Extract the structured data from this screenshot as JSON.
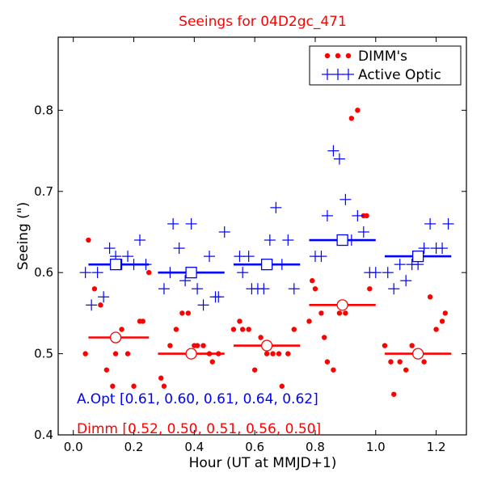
{
  "chart_data": {
    "type": "scatter",
    "title": "Seeings for 04D2gc_471",
    "xlabel": "Hour (UT at MMJD+1)",
    "ylabel": "Seeing (\")",
    "xlim": [
      -0.05,
      1.3
    ],
    "ylim": [
      0.4,
      0.89
    ],
    "x_ticks": [
      0.0,
      0.2,
      0.4,
      0.6,
      0.8,
      1.0,
      1.2
    ],
    "x_tick_labels": [
      "0.0",
      "0.2",
      "0.4",
      "0.6",
      "0.8",
      "1.0",
      "1.2"
    ],
    "y_ticks": [
      0.4,
      0.5,
      0.6,
      0.7,
      0.8
    ],
    "y_tick_labels": [
      "0.4",
      "0.5",
      "0.6",
      "0.7",
      "0.8"
    ],
    "grid": false,
    "legend_position": "top-right",
    "series": [
      {
        "name": "DIMM's",
        "color": "#ff0000",
        "marker": "dot",
        "points": [
          [
            0.04,
            0.5
          ],
          [
            0.05,
            0.64
          ],
          [
            0.07,
            0.58
          ],
          [
            0.09,
            0.56
          ],
          [
            0.11,
            0.48
          ],
          [
            0.13,
            0.46
          ],
          [
            0.14,
            0.5
          ],
          [
            0.16,
            0.53
          ],
          [
            0.18,
            0.5
          ],
          [
            0.2,
            0.46
          ],
          [
            0.22,
            0.54
          ],
          [
            0.23,
            0.54
          ],
          [
            0.25,
            0.6
          ],
          [
            0.29,
            0.47
          ],
          [
            0.3,
            0.46
          ],
          [
            0.32,
            0.51
          ],
          [
            0.34,
            0.53
          ],
          [
            0.36,
            0.55
          ],
          [
            0.38,
            0.55
          ],
          [
            0.4,
            0.51
          ],
          [
            0.41,
            0.51
          ],
          [
            0.43,
            0.51
          ],
          [
            0.45,
            0.5
          ],
          [
            0.46,
            0.49
          ],
          [
            0.48,
            0.5
          ],
          [
            0.53,
            0.53
          ],
          [
            0.55,
            0.54
          ],
          [
            0.56,
            0.53
          ],
          [
            0.58,
            0.53
          ],
          [
            0.6,
            0.48
          ],
          [
            0.62,
            0.52
          ],
          [
            0.64,
            0.5
          ],
          [
            0.66,
            0.5
          ],
          [
            0.68,
            0.5
          ],
          [
            0.69,
            0.46
          ],
          [
            0.71,
            0.5
          ],
          [
            0.73,
            0.53
          ],
          [
            0.78,
            0.54
          ],
          [
            0.79,
            0.59
          ],
          [
            0.8,
            0.58
          ],
          [
            0.82,
            0.55
          ],
          [
            0.83,
            0.52
          ],
          [
            0.84,
            0.49
          ],
          [
            0.86,
            0.48
          ],
          [
            0.88,
            0.55
          ],
          [
            0.9,
            0.55
          ],
          [
            0.92,
            0.79
          ],
          [
            0.94,
            0.8
          ],
          [
            0.96,
            0.67
          ],
          [
            0.97,
            0.67
          ],
          [
            0.98,
            0.58
          ],
          [
            1.03,
            0.51
          ],
          [
            1.05,
            0.49
          ],
          [
            1.06,
            0.45
          ],
          [
            1.08,
            0.49
          ],
          [
            1.1,
            0.48
          ],
          [
            1.12,
            0.51
          ],
          [
            1.14,
            0.5
          ],
          [
            1.16,
            0.49
          ],
          [
            1.18,
            0.57
          ],
          [
            1.2,
            0.53
          ],
          [
            1.22,
            0.54
          ],
          [
            1.23,
            0.55
          ]
        ]
      },
      {
        "name": "Active Optic",
        "color": "#0000ff",
        "marker": "plus",
        "points": [
          [
            0.04,
            0.6
          ],
          [
            0.06,
            0.56
          ],
          [
            0.08,
            0.6
          ],
          [
            0.1,
            0.57
          ],
          [
            0.12,
            0.63
          ],
          [
            0.14,
            0.62
          ],
          [
            0.16,
            0.61
          ],
          [
            0.18,
            0.62
          ],
          [
            0.2,
            0.61
          ],
          [
            0.22,
            0.64
          ],
          [
            0.24,
            0.61
          ],
          [
            0.3,
            0.58
          ],
          [
            0.32,
            0.6
          ],
          [
            0.33,
            0.66
          ],
          [
            0.35,
            0.63
          ],
          [
            0.37,
            0.59
          ],
          [
            0.39,
            0.66
          ],
          [
            0.41,
            0.58
          ],
          [
            0.43,
            0.56
          ],
          [
            0.45,
            0.62
          ],
          [
            0.47,
            0.57
          ],
          [
            0.48,
            0.57
          ],
          [
            0.5,
            0.65
          ],
          [
            0.55,
            0.62
          ],
          [
            0.56,
            0.6
          ],
          [
            0.58,
            0.62
          ],
          [
            0.59,
            0.58
          ],
          [
            0.61,
            0.58
          ],
          [
            0.63,
            0.58
          ],
          [
            0.65,
            0.64
          ],
          [
            0.67,
            0.68
          ],
          [
            0.69,
            0.61
          ],
          [
            0.71,
            0.64
          ],
          [
            0.73,
            0.58
          ],
          [
            0.8,
            0.62
          ],
          [
            0.82,
            0.62
          ],
          [
            0.84,
            0.67
          ],
          [
            0.86,
            0.75
          ],
          [
            0.88,
            0.74
          ],
          [
            0.9,
            0.69
          ],
          [
            0.92,
            0.64
          ],
          [
            0.94,
            0.67
          ],
          [
            0.96,
            0.65
          ],
          [
            0.98,
            0.6
          ],
          [
            1.0,
            0.6
          ],
          [
            1.04,
            0.6
          ],
          [
            1.06,
            0.58
          ],
          [
            1.08,
            0.61
          ],
          [
            1.1,
            0.59
          ],
          [
            1.12,
            0.61
          ],
          [
            1.14,
            0.61
          ],
          [
            1.16,
            0.63
          ],
          [
            1.18,
            0.66
          ],
          [
            1.2,
            0.63
          ],
          [
            1.22,
            0.63
          ],
          [
            1.24,
            0.66
          ]
        ]
      }
    ],
    "bin_medians": [
      {
        "color": "#0000ff",
        "marker": "square",
        "bins": [
          {
            "x0": 0.05,
            "x1": 0.25,
            "x": 0.14,
            "y": 0.61
          },
          {
            "x0": 0.28,
            "x1": 0.5,
            "x": 0.39,
            "y": 0.6
          },
          {
            "x0": 0.53,
            "x1": 0.75,
            "x": 0.64,
            "y": 0.61
          },
          {
            "x0": 0.78,
            "x1": 1.0,
            "x": 0.89,
            "y": 0.64
          },
          {
            "x0": 1.03,
            "x1": 1.25,
            "x": 1.14,
            "y": 0.62
          }
        ]
      },
      {
        "color": "#ff0000",
        "marker": "circle",
        "bins": [
          {
            "x0": 0.05,
            "x1": 0.25,
            "x": 0.14,
            "y": 0.52
          },
          {
            "x0": 0.28,
            "x1": 0.5,
            "x": 0.39,
            "y": 0.5
          },
          {
            "x0": 0.53,
            "x1": 0.75,
            "x": 0.64,
            "y": 0.51
          },
          {
            "x0": 0.78,
            "x1": 1.0,
            "x": 0.89,
            "y": 0.56
          },
          {
            "x0": 1.03,
            "x1": 1.25,
            "x": 1.14,
            "y": 0.5
          }
        ]
      }
    ],
    "annotations": [
      {
        "text": "A.Opt [0.61, 0.60, 0.61, 0.64, 0.62]",
        "color": "#0000ff"
      },
      {
        "text": "Dimm [0.52, 0.50, 0.51, 0.56, 0.50]",
        "color": "#ff0000"
      }
    ]
  }
}
